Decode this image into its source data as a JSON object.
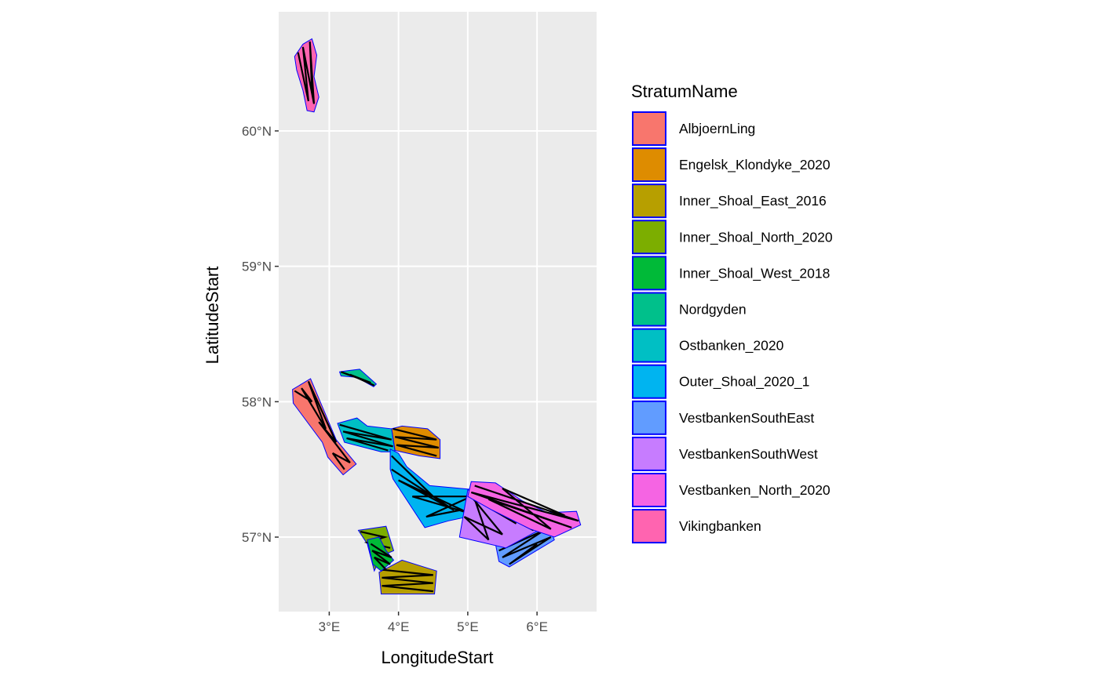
{
  "chart_data": {
    "type": "map",
    "xlabel": "LongitudeStart",
    "ylabel": "LatitudeStart",
    "xlim": [
      2.27,
      6.86
    ],
    "ylim": [
      56.45,
      60.88
    ],
    "x_ticks": [
      {
        "value": 3,
        "label": "3°E"
      },
      {
        "value": 4,
        "label": "4°E"
      },
      {
        "value": 5,
        "label": "5°E"
      },
      {
        "value": 6,
        "label": "6°E"
      }
    ],
    "y_ticks": [
      {
        "value": 57,
        "label": "57°N"
      },
      {
        "value": 58,
        "label": "58°N"
      },
      {
        "value": 59,
        "label": "59°N"
      },
      {
        "value": 60,
        "label": "60°N"
      }
    ],
    "grid": true,
    "panel_background": "#ebebeb",
    "grid_color": "#ffffff",
    "polygon_border_color": "#0000ff",
    "transect_color": "#000000",
    "legend": {
      "title": "StratumName",
      "position": "right"
    },
    "strata": [
      {
        "name": "AlbjoernLing",
        "color": "#F8766D",
        "polygon": [
          [
            2.47,
            58.09
          ],
          [
            2.73,
            58.17
          ],
          [
            3.1,
            57.72
          ],
          [
            3.39,
            57.54
          ],
          [
            3.2,
            57.46
          ],
          [
            2.98,
            57.59
          ],
          [
            2.9,
            57.7
          ],
          [
            2.48,
            57.99
          ]
        ],
        "transects": [
          [
            2.5,
            58.08
          ],
          [
            2.75,
            58.0
          ],
          [
            2.6,
            58.1
          ],
          [
            2.95,
            57.8
          ],
          [
            2.7,
            58.15
          ],
          [
            3.1,
            57.7
          ],
          [
            2.85,
            57.85
          ],
          [
            3.3,
            57.55
          ],
          [
            3.05,
            57.62
          ],
          [
            3.22,
            57.5
          ]
        ]
      },
      {
        "name": "Engelsk_Klondyke_2020",
        "color": "#DE8C00",
        "polygon": [
          [
            3.9,
            57.8
          ],
          [
            4.05,
            57.82
          ],
          [
            4.42,
            57.8
          ],
          [
            4.6,
            57.72
          ],
          [
            4.6,
            57.58
          ],
          [
            4.3,
            57.6
          ],
          [
            3.95,
            57.64
          ]
        ],
        "transects": [
          [
            3.92,
            57.8
          ],
          [
            4.55,
            57.72
          ],
          [
            3.95,
            57.74
          ],
          [
            4.58,
            57.66
          ],
          [
            3.97,
            57.68
          ],
          [
            4.55,
            57.6
          ]
        ]
      },
      {
        "name": "Inner_Shoal_East_2016",
        "color": "#B79F00",
        "polygon": [
          [
            3.72,
            56.74
          ],
          [
            4.05,
            56.83
          ],
          [
            4.55,
            56.75
          ],
          [
            4.52,
            56.58
          ],
          [
            3.75,
            56.58
          ]
        ],
        "transects": [
          [
            3.75,
            56.76
          ],
          [
            4.5,
            56.72
          ],
          [
            3.76,
            56.7
          ],
          [
            4.5,
            56.66
          ],
          [
            3.76,
            56.64
          ],
          [
            4.5,
            56.6
          ]
        ]
      },
      {
        "name": "Inner_Shoal_North_2020",
        "color": "#7CAE00",
        "polygon": [
          [
            3.42,
            57.05
          ],
          [
            3.82,
            57.08
          ],
          [
            3.93,
            56.9
          ],
          [
            3.75,
            56.86
          ],
          [
            3.65,
            56.75
          ],
          [
            3.55,
            56.95
          ]
        ],
        "transects": [
          [
            3.45,
            57.04
          ],
          [
            3.8,
            57.0
          ],
          [
            3.55,
            56.96
          ],
          [
            3.88,
            56.92
          ]
        ]
      },
      {
        "name": "Inner_Shoal_West_2018",
        "color": "#00BA38",
        "polygon": [
          [
            3.55,
            56.98
          ],
          [
            3.72,
            57.0
          ],
          [
            3.82,
            56.9
          ],
          [
            3.93,
            56.83
          ],
          [
            3.75,
            56.75
          ],
          [
            3.63,
            56.8
          ]
        ],
        "transects": [
          [
            3.6,
            56.95
          ],
          [
            3.9,
            56.85
          ],
          [
            3.62,
            56.9
          ],
          [
            3.88,
            56.8
          ],
          [
            3.65,
            56.85
          ],
          [
            3.82,
            56.76
          ]
        ]
      },
      {
        "name": "Nordgyden",
        "color": "#00C08B",
        "polygon": [
          [
            3.15,
            58.22
          ],
          [
            3.28,
            58.23
          ],
          [
            3.44,
            58.24
          ],
          [
            3.68,
            58.13
          ],
          [
            3.64,
            58.11
          ],
          [
            3.4,
            58.18
          ],
          [
            3.17,
            58.19
          ]
        ],
        "transects": [
          [
            3.17,
            58.22
          ],
          [
            3.6,
            58.14
          ],
          [
            3.3,
            58.2
          ],
          [
            3.65,
            58.12
          ]
        ]
      },
      {
        "name": "Ostbanken_2020",
        "color": "#00BFC4",
        "polygon": [
          [
            3.12,
            57.84
          ],
          [
            3.4,
            57.88
          ],
          [
            3.55,
            57.82
          ],
          [
            3.9,
            57.8
          ],
          [
            3.95,
            57.63
          ],
          [
            3.75,
            57.63
          ],
          [
            3.22,
            57.7
          ]
        ],
        "transects": [
          [
            3.15,
            57.83
          ],
          [
            3.9,
            57.72
          ],
          [
            3.2,
            57.78
          ],
          [
            3.92,
            57.67
          ],
          [
            3.25,
            57.73
          ],
          [
            3.85,
            57.64
          ]
        ]
      },
      {
        "name": "Outer_Shoal_2020_1",
        "color": "#00B4F0",
        "polygon": [
          [
            3.88,
            57.65
          ],
          [
            4.0,
            57.62
          ],
          [
            4.12,
            57.52
          ],
          [
            4.45,
            57.38
          ],
          [
            5.1,
            57.35
          ],
          [
            5.0,
            57.15
          ],
          [
            4.72,
            57.12
          ],
          [
            4.38,
            57.07
          ],
          [
            3.92,
            57.43
          ],
          [
            3.88,
            57.5
          ]
        ],
        "transects": [
          [
            3.9,
            57.6
          ],
          [
            4.5,
            57.3
          ],
          [
            3.9,
            57.5
          ],
          [
            4.8,
            57.2
          ],
          [
            4.0,
            57.42
          ],
          [
            5.0,
            57.18
          ],
          [
            4.2,
            57.3
          ],
          [
            5.05,
            57.3
          ],
          [
            4.4,
            57.15
          ],
          [
            4.9,
            57.2
          ]
        ]
      },
      {
        "name": "VestbankenSouthEast",
        "color": "#619CFF",
        "polygon": [
          [
            5.4,
            56.95
          ],
          [
            5.6,
            57.15
          ],
          [
            6.15,
            57.1
          ],
          [
            6.25,
            56.98
          ],
          [
            5.6,
            56.78
          ],
          [
            5.45,
            56.82
          ]
        ],
        "transects": [
          [
            5.45,
            56.9
          ],
          [
            6.1,
            57.05
          ],
          [
            5.5,
            56.85
          ],
          [
            6.2,
            57.0
          ],
          [
            5.6,
            56.8
          ],
          [
            6.0,
            56.95
          ]
        ]
      },
      {
        "name": "VestbankenSouthWest",
        "color": "#C77CFF",
        "polygon": [
          [
            5.0,
            57.35
          ],
          [
            5.55,
            57.2
          ],
          [
            6.02,
            57.05
          ],
          [
            5.55,
            56.92
          ],
          [
            5.05,
            56.98
          ],
          [
            4.88,
            57.0
          ]
        ],
        "transects": [
          [
            5.02,
            57.32
          ],
          [
            5.5,
            57.02
          ],
          [
            4.95,
            57.15
          ],
          [
            5.3,
            56.98
          ],
          [
            5.1,
            57.28
          ],
          [
            5.7,
            57.1
          ],
          [
            5.2,
            57.25
          ],
          [
            5.95,
            57.05
          ]
        ]
      },
      {
        "name": "Vestbanken_North_2020",
        "color": "#F564E3",
        "polygon": [
          [
            5.05,
            57.41
          ],
          [
            5.4,
            57.4
          ],
          [
            5.78,
            57.27
          ],
          [
            6.15,
            57.18
          ],
          [
            6.57,
            57.19
          ],
          [
            6.63,
            57.09
          ],
          [
            6.25,
            57.0
          ],
          [
            5.9,
            57.06
          ],
          [
            5.35,
            57.2
          ],
          [
            5.0,
            57.3
          ]
        ],
        "transects": [
          [
            5.1,
            57.38
          ],
          [
            6.6,
            57.12
          ],
          [
            5.05,
            57.33
          ],
          [
            6.5,
            57.07
          ],
          [
            5.3,
            57.28
          ],
          [
            6.2,
            57.06
          ],
          [
            5.5,
            57.36
          ],
          [
            6.4,
            57.16
          ]
        ]
      },
      {
        "name": "Vikingbanken",
        "color": "#FF64B0",
        "polygon": [
          [
            2.5,
            60.55
          ],
          [
            2.62,
            60.64
          ],
          [
            2.75,
            60.68
          ],
          [
            2.82,
            60.56
          ],
          [
            2.78,
            60.4
          ],
          [
            2.85,
            60.25
          ],
          [
            2.78,
            60.14
          ],
          [
            2.68,
            60.15
          ],
          [
            2.62,
            60.3
          ],
          [
            2.53,
            60.45
          ]
        ],
        "transects": [
          [
            2.55,
            60.58
          ],
          [
            2.7,
            60.22
          ],
          [
            2.62,
            60.62
          ],
          [
            2.78,
            60.2
          ],
          [
            2.72,
            60.66
          ],
          [
            2.75,
            60.3
          ]
        ]
      }
    ]
  }
}
